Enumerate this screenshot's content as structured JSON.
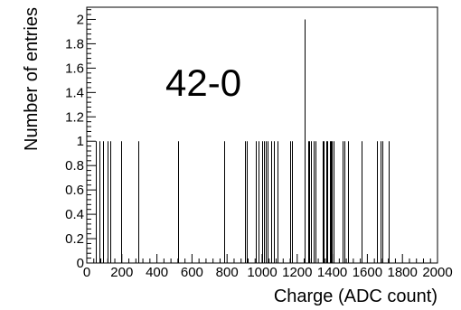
{
  "chart_data": {
    "type": "bar",
    "subtype": "histogram-spikes",
    "annotation": "42-0",
    "xlabel": "Charge (ADC count)",
    "ylabel": "Number of entries",
    "xlim": [
      0,
      2000
    ],
    "ylim": [
      0,
      2.1
    ],
    "x_ticks": [
      0,
      200,
      400,
      600,
      800,
      1000,
      1200,
      1400,
      1600,
      1800,
      2000
    ],
    "x_tick_labels": [
      "0",
      "200",
      "400",
      "600",
      "800",
      "1000",
      "1200",
      "1400",
      "1600",
      "1800",
      "2000"
    ],
    "y_ticks": [
      0,
      0.2,
      0.4,
      0.6,
      0.8,
      1,
      1.2,
      1.4,
      1.6,
      1.8,
      2
    ],
    "y_tick_labels": [
      "0",
      "0.2",
      "0.4",
      "0.6",
      "0.8",
      "1",
      "1.2",
      "1.4",
      "1.6",
      "1.8",
      "2"
    ],
    "grid": false,
    "legend": false,
    "series": [
      {
        "x": [
          53,
          70,
          93,
          117,
          135,
          196,
          295,
          522,
          781,
          900,
          911,
          962,
          977,
          998,
          1010,
          1021,
          1032,
          1051,
          1068,
          1086,
          1161,
          1168,
          1244,
          1263,
          1270,
          1280,
          1292,
          1305,
          1343,
          1353,
          1364,
          1369,
          1385,
          1393,
          1398,
          1409,
          1461,
          1471,
          1490,
          1567,
          1653,
          1675,
          1688,
          1720
        ],
        "values": [
          1,
          1,
          1,
          1,
          1,
          1,
          1,
          1,
          1,
          1,
          1,
          1,
          1,
          1,
          1,
          1,
          1,
          1,
          1,
          1,
          1,
          1,
          2,
          1,
          1,
          1,
          1,
          1,
          1,
          1,
          1,
          1,
          1,
          1,
          1,
          1,
          1,
          1,
          1,
          1,
          1,
          1,
          1,
          1
        ]
      }
    ]
  }
}
